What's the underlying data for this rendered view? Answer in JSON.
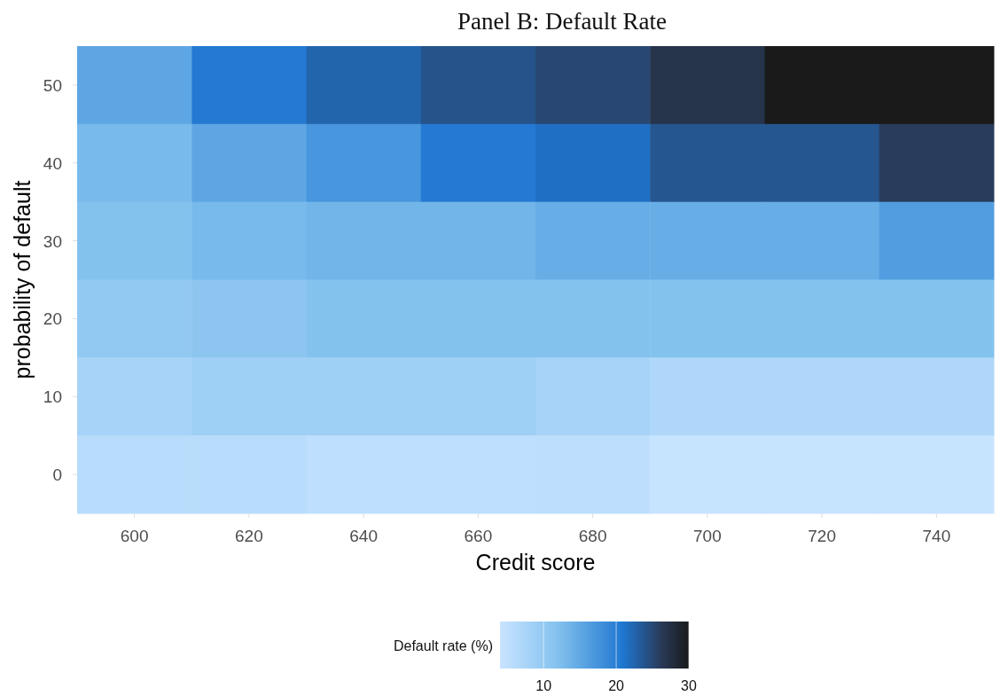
{
  "chart_data": {
    "type": "heatmap",
    "title": "Panel B: Default Rate",
    "xlabel": "Credit score",
    "ylabel": "probability of default",
    "clabel": "Default rate (%)",
    "categories": [
      "600",
      "620",
      "640",
      "660",
      "680",
      "700",
      "720",
      "740"
    ],
    "y_categories": [
      "50",
      "40",
      "30",
      "20",
      "10",
      "0"
    ],
    "cells": [
      [
        15.2,
        20.5,
        22.5,
        24,
        25,
        27,
        30,
        30
      ],
      [
        12.9,
        15.2,
        17.2,
        20.5,
        21.5,
        23.8,
        23.8,
        26
      ],
      [
        11.8,
        12.9,
        13.5,
        13.5,
        14.3,
        14.3,
        14.3,
        16.3
      ],
      [
        10.2,
        10.9,
        11.8,
        11.8,
        11.8,
        11.8,
        11.8,
        11.8
      ],
      [
        7.9,
        8.8,
        8.8,
        8.8,
        7.9,
        7.0,
        7.0,
        7.0
      ],
      [
        5.8,
        5.8,
        5.1,
        5.1,
        5.3,
        4.1,
        4.1,
        4.1
      ]
    ],
    "clim": [
      4,
      30
    ],
    "cticks": [
      10,
      20,
      30
    ]
  }
}
